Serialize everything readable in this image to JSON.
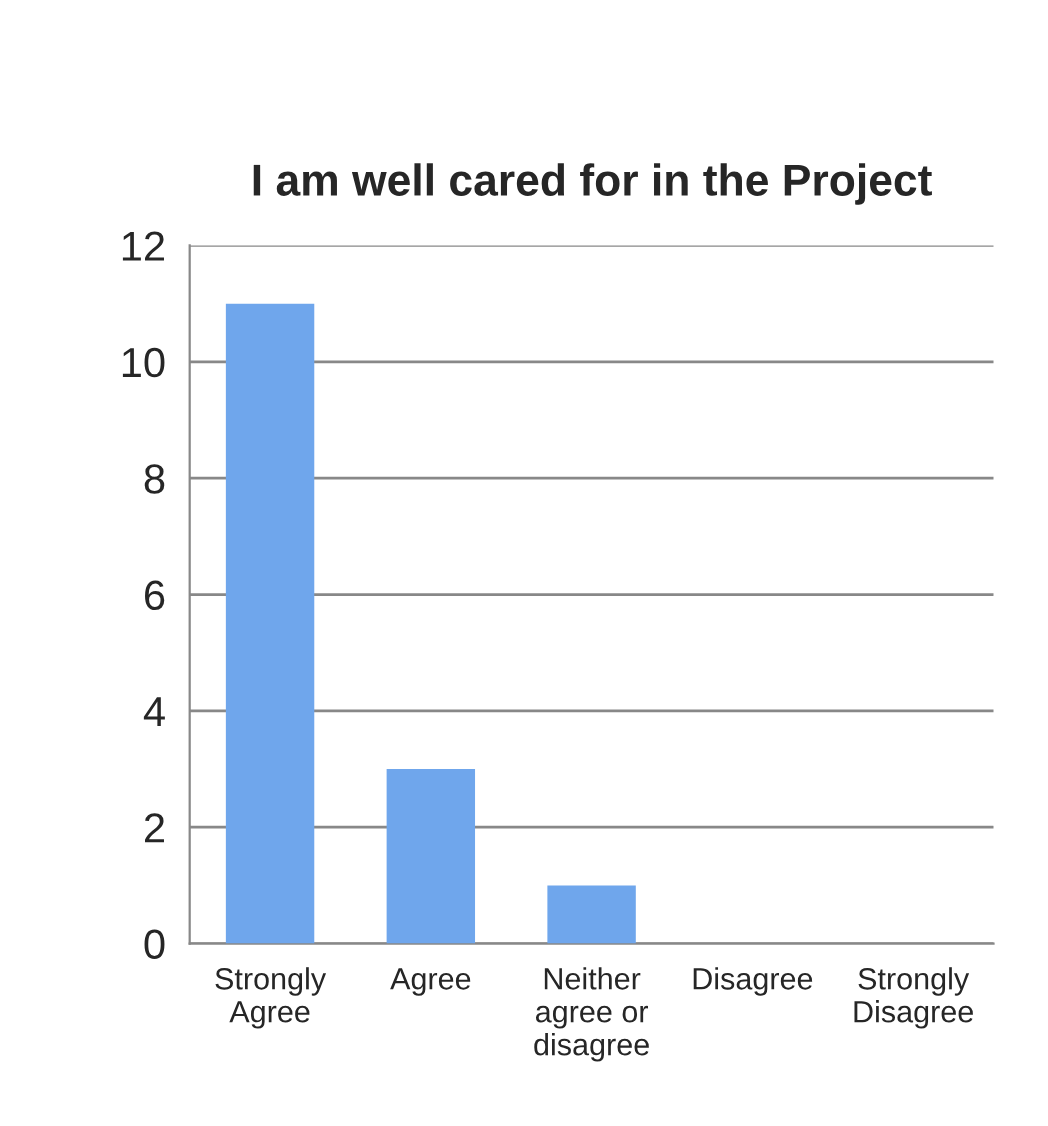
{
  "chart_data": {
    "type": "bar",
    "title": "I am well cared for in the Project",
    "categories": [
      "Strongly\nAgree",
      "Agree",
      "Neither\nagree or\ndisagree",
      "Disagree",
      "Strongly\nDisagree"
    ],
    "values": [
      11,
      3,
      1,
      0,
      0
    ],
    "color": "#6fa6ec",
    "ylim": [
      0,
      12
    ],
    "yticks": [
      0,
      2,
      4,
      6,
      8,
      10,
      12
    ],
    "grid": "y",
    "legend": false
  }
}
